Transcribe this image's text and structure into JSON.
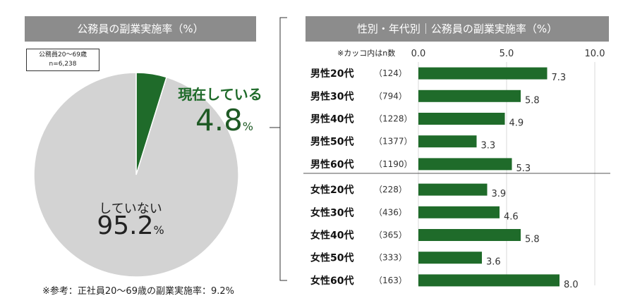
{
  "left_header": "公務員の副業実施率（%）",
  "right_header": "性別・年代別｜公務員の副業実施率（%）",
  "sample_box": [
    "公務員20～69歳",
    "n=6,238"
  ],
  "footnote": "※参考：正社員20～69歳の副業実施率：9.2%",
  "paren_note": "※カッコ内はn数",
  "colors": {
    "green": "#1f6b2a",
    "grey": "#d3d3d3",
    "header": "#8c8c8c"
  },
  "chart_data": [
    {
      "type": "pie",
      "slices": [
        {
          "label": "現在している",
          "value": 4.8,
          "color": "#1f6b2a"
        },
        {
          "label": "していない",
          "value": 95.2,
          "color": "#d3d3d3"
        }
      ],
      "value_unit": "%"
    },
    {
      "type": "bar",
      "orientation": "horizontal",
      "xlim": [
        0,
        10
      ],
      "xticks": [
        "0.0",
        "5.0",
        "10.0"
      ],
      "categories": [
        "男性20代",
        "男性30代",
        "男性40代",
        "男性50代",
        "男性60代",
        "女性20代",
        "女性30代",
        "女性40代",
        "女性50代",
        "女性60代"
      ],
      "n_labels": [
        "（124）",
        "（794）",
        "（1228）",
        "（1377）",
        "（1190）",
        "（228）",
        "（436）",
        "（365）",
        "（333）",
        "（163）"
      ],
      "values": [
        7.3,
        5.8,
        4.9,
        3.3,
        5.3,
        3.9,
        4.6,
        5.8,
        3.6,
        8.0
      ],
      "value_labels": [
        "7.3",
        "5.8",
        "4.9",
        "3.3",
        "5.3",
        "3.9",
        "4.6",
        "5.8",
        "3.6",
        "8.0"
      ],
      "color": "#1f6b2a"
    }
  ]
}
